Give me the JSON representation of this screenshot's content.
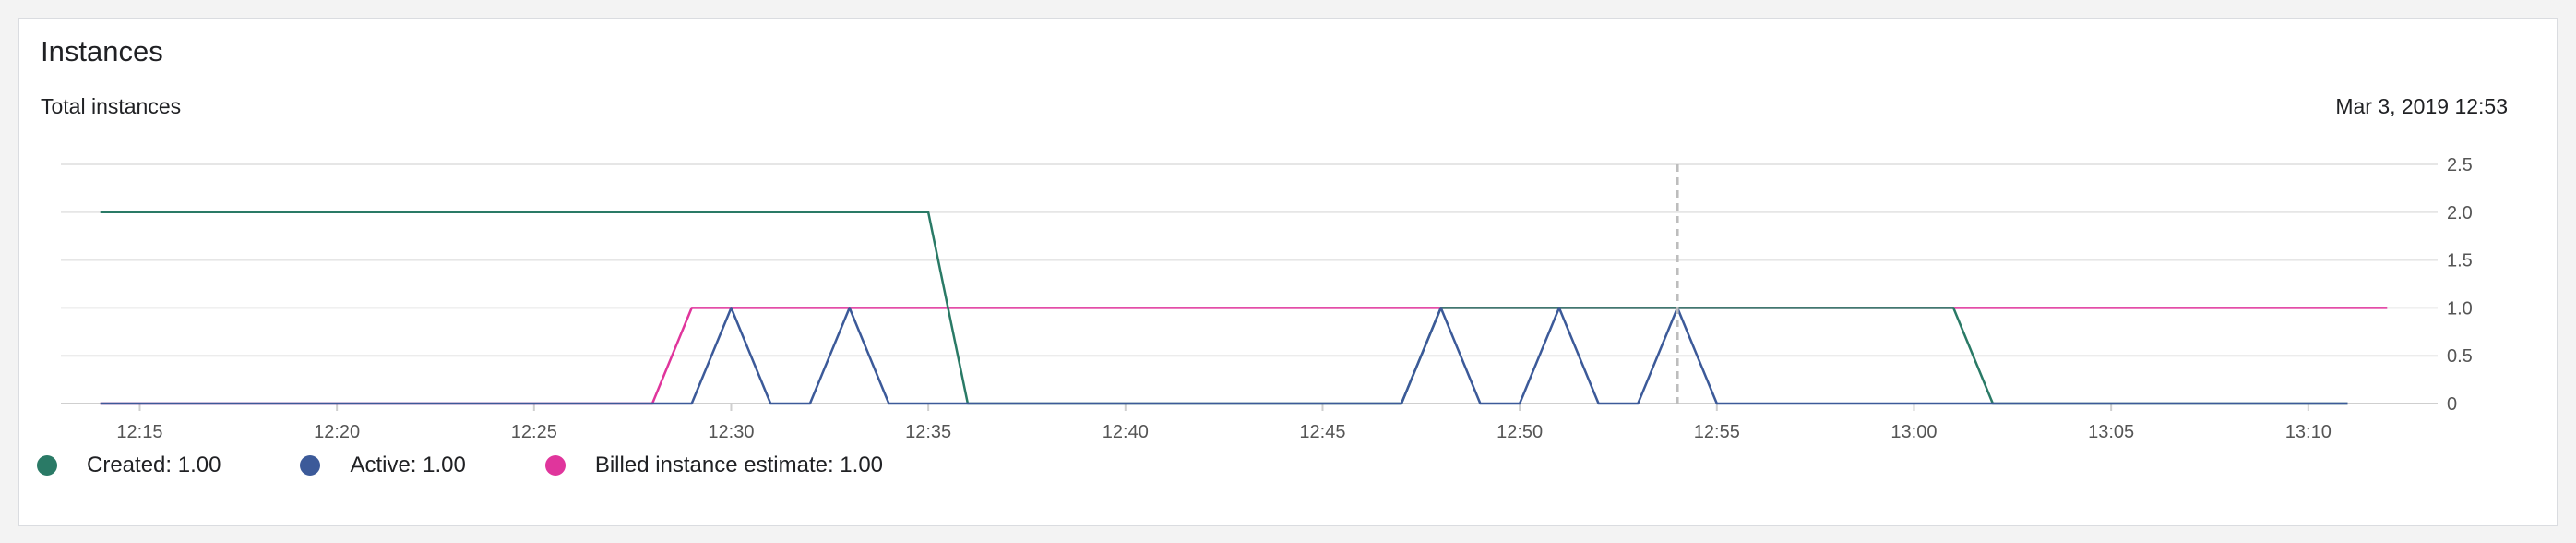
{
  "card": {
    "title": "Instances",
    "subtitle": "Total instances",
    "timestamp": "Mar 3, 2019 12:53"
  },
  "colors": {
    "created": "#2a7a66",
    "active": "#3c5a99",
    "billed": "#e0359c",
    "grid": "#e6e6e6",
    "axis": "#cfcfcf",
    "cursor": "#bdbdbd",
    "tick_text": "#555555"
  },
  "legend": [
    {
      "key": "created",
      "label": "Created: 1.00",
      "color": "#2a7a66"
    },
    {
      "key": "active",
      "label": "Active: 1.00",
      "color": "#3c5a99"
    },
    {
      "key": "billed",
      "label": "Billed instance estimate: 1.00",
      "color": "#e0359c"
    }
  ],
  "chart_data": {
    "type": "line",
    "xlabel": "",
    "ylabel": "",
    "x_unit": "time",
    "x_ticks": [
      "12:15",
      "12:20",
      "12:25",
      "12:30",
      "12:35",
      "12:40",
      "12:45",
      "12:50",
      "12:55",
      "13:00",
      "13:05",
      "13:10"
    ],
    "y_ticks": [
      "0",
      "0.5",
      "1.0",
      "1.5",
      "2.0",
      "2.5"
    ],
    "xlim": [
      "12:13",
      "13:13"
    ],
    "ylim": [
      0,
      2.5
    ],
    "cursor_time": "12:54",
    "grid": true,
    "legend_position": "bottom-left",
    "series": [
      {
        "name": "Created",
        "key": "created",
        "points": [
          [
            "12:14",
            2
          ],
          [
            "12:35",
            2
          ],
          [
            "12:36",
            0
          ],
          [
            "12:47",
            0
          ],
          [
            "12:48",
            1
          ],
          [
            "13:01",
            1
          ],
          [
            "13:02",
            0
          ],
          [
            "13:11",
            0
          ]
        ]
      },
      {
        "name": "Active",
        "key": "active",
        "points": [
          [
            "12:14",
            0
          ],
          [
            "12:29",
            0
          ],
          [
            "12:30",
            1
          ],
          [
            "12:31",
            0
          ],
          [
            "12:32",
            0
          ],
          [
            "12:33",
            1
          ],
          [
            "12:34",
            0
          ],
          [
            "12:47",
            0
          ],
          [
            "12:48",
            1
          ],
          [
            "12:49",
            0
          ],
          [
            "12:50",
            0
          ],
          [
            "12:51",
            1
          ],
          [
            "12:52",
            0
          ],
          [
            "12:53",
            0
          ],
          [
            "12:54",
            1
          ],
          [
            "12:55",
            0
          ],
          [
            "13:11",
            0
          ]
        ]
      },
      {
        "name": "Billed instance estimate",
        "key": "billed",
        "points": [
          [
            "12:14",
            0
          ],
          [
            "12:28",
            0
          ],
          [
            "12:29",
            1
          ],
          [
            "13:12",
            1
          ]
        ]
      }
    ]
  }
}
